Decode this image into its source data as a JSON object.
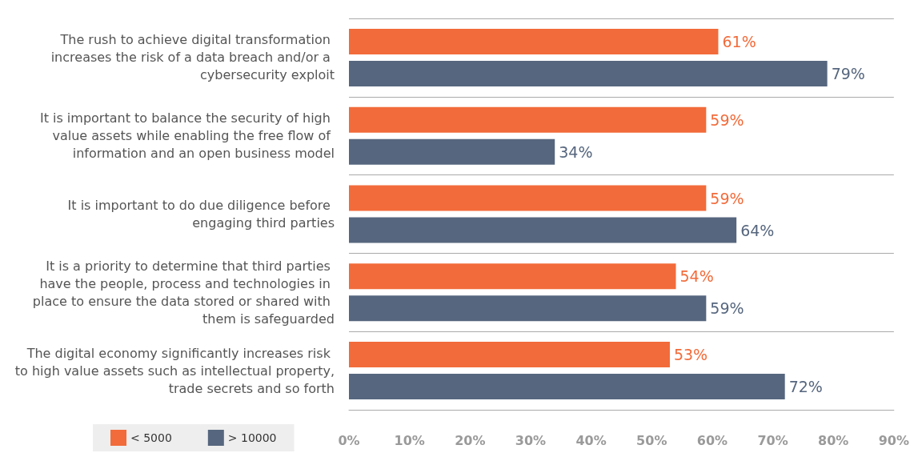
{
  "chart_data": {
    "type": "bar",
    "orientation": "horizontal",
    "categories": [
      "The rush to achieve digital transformation increases the risk of a data breach and/or a cybersecurity exploit",
      "It is important to balance the security of high value assets while enabling the free flow of information and an open business model",
      "It is important to do due diligence before engaging third parties",
      "It is a priority to determine that third parties have the people, process and technologies in place to ensure the data stored or shared with them is safeguarded",
      "The digital economy significantly increases risk to high value assets such as intellectual property, trade secrets and so forth"
    ],
    "series": [
      {
        "name": "< 5000",
        "color": "#f26b3a",
        "values": [
          61,
          59,
          59,
          54,
          53
        ],
        "value_labels": [
          "61%",
          "59%",
          "59%",
          "54%",
          "53%"
        ]
      },
      {
        "name": "> 10000",
        "color": "#56667e",
        "values": [
          79,
          34,
          64,
          59,
          72
        ],
        "value_labels": [
          "79%",
          "34%",
          "64%",
          "59%",
          "72%"
        ]
      }
    ],
    "xlim": [
      0,
      90
    ],
    "xticks": [
      {
        "value": 0,
        "label": "0%"
      },
      {
        "value": 10,
        "label": "10%"
      },
      {
        "value": 20,
        "label": "20%"
      },
      {
        "value": 30,
        "label": "30%"
      },
      {
        "value": 40,
        "label": "40%"
      },
      {
        "value": 50,
        "label": "50%"
      },
      {
        "value": 60,
        "label": "60%"
      },
      {
        "value": 70,
        "label": "70%"
      },
      {
        "value": 80,
        "label": "80%"
      },
      {
        "value": 90,
        "label": "90%"
      }
    ],
    "grid": "y",
    "legend": "bottom left"
  }
}
